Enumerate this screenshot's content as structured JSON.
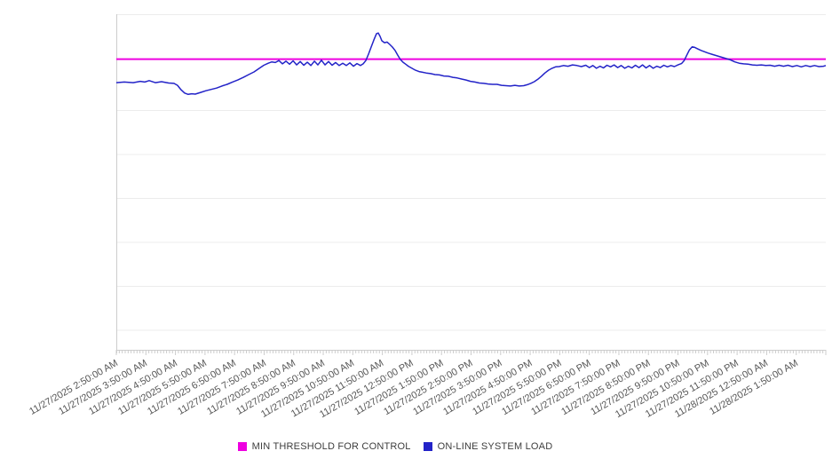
{
  "chart_data": {
    "type": "line",
    "title": "",
    "x_axis": {
      "start": "11/27/2025 2:50:00 AM",
      "end": "11/28/2025 1:50:00 AM",
      "tick_labels": [
        "11/27/2025 2:50:00 AM",
        "11/27/2025 3:50:00 AM",
        "11/27/2025 4:50:00 AM",
        "11/27/2025 5:50:00 AM",
        "11/27/2025 6:50:00 AM",
        "11/27/2025 7:50:00 AM",
        "11/27/2025 8:50:00 AM",
        "11/27/2025 9:50:00 AM",
        "11/27/2025 10:50:00 AM",
        "11/27/2025 11:50:00 AM",
        "11/27/2025 12:50:00 PM",
        "11/27/2025 1:50:00 PM",
        "11/27/2025 2:50:00 PM",
        "11/27/2025 3:50:00 PM",
        "11/27/2025 4:50:00 PM",
        "11/27/2025 5:50:00 PM",
        "11/27/2025 6:50:00 PM",
        "11/27/2025 7:50:00 PM",
        "11/27/2025 8:50:00 PM",
        "11/27/2025 9:50:00 PM",
        "11/27/2025 10:50:00 PM",
        "11/27/2025 11:50:00 PM",
        "11/28/2025 12:50:00 AM",
        "11/28/2025 1:50:00 AM"
      ],
      "minor_ticks_per_hour": 10,
      "hours_span": 24
    },
    "y_axis": {
      "labels_visible": false,
      "note": "no numeric labels shown; series values are percent of plot height (0 = bottom axis, 100 = top gridline)",
      "gridlines": true
    },
    "legend_position": "bottom-center",
    "series": [
      {
        "name": "MIN THRESHOLD FOR CONTROL",
        "style": "horizontal-threshold",
        "color": "#ee00e0",
        "value": 86.6
      },
      {
        "name": "ON-LINE SYSTEM LOAD",
        "style": "line",
        "color": "#2323c8",
        "points": [
          [
            0,
            79.6
          ],
          [
            0.27,
            79.8
          ],
          [
            0.57,
            79.6
          ],
          [
            0.81,
            80
          ],
          [
            0.96,
            79.8
          ],
          [
            1.11,
            80.2
          ],
          [
            1.32,
            79.6
          ],
          [
            1.53,
            79.9
          ],
          [
            1.77,
            79.5
          ],
          [
            1.95,
            79.4
          ],
          [
            2.07,
            78.8
          ],
          [
            2.19,
            77.5
          ],
          [
            2.31,
            76.5
          ],
          [
            2.43,
            76.1
          ],
          [
            2.55,
            76.3
          ],
          [
            2.67,
            76.2
          ],
          [
            2.85,
            76.7
          ],
          [
            3.03,
            77.2
          ],
          [
            3.21,
            77.6
          ],
          [
            3.39,
            78
          ],
          [
            3.57,
            78.6
          ],
          [
            3.75,
            79.1
          ],
          [
            3.93,
            79.8
          ],
          [
            4.11,
            80.4
          ],
          [
            4.3,
            81.2
          ],
          [
            4.48,
            82
          ],
          [
            4.66,
            82.8
          ],
          [
            4.84,
            83.9
          ],
          [
            4.99,
            84.8
          ],
          [
            5.14,
            85.4
          ],
          [
            5.26,
            85.8
          ],
          [
            5.38,
            85.6
          ],
          [
            5.5,
            86.2
          ],
          [
            5.62,
            85.2
          ],
          [
            5.74,
            86
          ],
          [
            5.86,
            85.1
          ],
          [
            5.98,
            86.1
          ],
          [
            6.1,
            84.9
          ],
          [
            6.22,
            85.9
          ],
          [
            6.34,
            84.8
          ],
          [
            6.46,
            85.7
          ],
          [
            6.58,
            84.7
          ],
          [
            6.7,
            86
          ],
          [
            6.82,
            84.9
          ],
          [
            6.94,
            86.3
          ],
          [
            7.06,
            84.9
          ],
          [
            7.18,
            85.9
          ],
          [
            7.3,
            84.8
          ],
          [
            7.42,
            85.6
          ],
          [
            7.54,
            84.7
          ],
          [
            7.66,
            85.4
          ],
          [
            7.78,
            84.7
          ],
          [
            7.9,
            85.5
          ],
          [
            8.02,
            84.5
          ],
          [
            8.14,
            85.3
          ],
          [
            8.26,
            84.7
          ],
          [
            8.35,
            85.2
          ],
          [
            8.44,
            86.2
          ],
          [
            8.53,
            88.1
          ],
          [
            8.62,
            90.2
          ],
          [
            8.71,
            92.3
          ],
          [
            8.8,
            94.2
          ],
          [
            8.86,
            94.4
          ],
          [
            8.92,
            93.4
          ],
          [
            8.98,
            92.1
          ],
          [
            9.07,
            91.5
          ],
          [
            9.16,
            91.7
          ],
          [
            9.25,
            91
          ],
          [
            9.34,
            90.2
          ],
          [
            9.43,
            89.2
          ],
          [
            9.52,
            87.8
          ],
          [
            9.61,
            86.5
          ],
          [
            9.7,
            85.7
          ],
          [
            9.79,
            85.1
          ],
          [
            9.88,
            84.5
          ],
          [
            10,
            83.9
          ],
          [
            10.12,
            83.3
          ],
          [
            10.24,
            82.9
          ],
          [
            10.36,
            82.7
          ],
          [
            10.48,
            82.5
          ],
          [
            10.63,
            82.3
          ],
          [
            10.78,
            82
          ],
          [
            10.93,
            81.9
          ],
          [
            11.08,
            81.6
          ],
          [
            11.23,
            81.5
          ],
          [
            11.38,
            81.2
          ],
          [
            11.53,
            81
          ],
          [
            11.68,
            80.7
          ],
          [
            11.83,
            80.4
          ],
          [
            11.98,
            80
          ],
          [
            12.13,
            79.8
          ],
          [
            12.28,
            79.5
          ],
          [
            12.43,
            79.4
          ],
          [
            12.58,
            79.2
          ],
          [
            12.73,
            79.1
          ],
          [
            12.88,
            79.1
          ],
          [
            13.03,
            78.8
          ],
          [
            13.18,
            78.7
          ],
          [
            13.33,
            78.6
          ],
          [
            13.48,
            78.8
          ],
          [
            13.63,
            78.6
          ],
          [
            13.78,
            78.7
          ],
          [
            13.9,
            79
          ],
          [
            14.02,
            79.4
          ],
          [
            14.14,
            79.9
          ],
          [
            14.26,
            80.6
          ],
          [
            14.38,
            81.5
          ],
          [
            14.5,
            82.5
          ],
          [
            14.62,
            83.3
          ],
          [
            14.74,
            83.9
          ],
          [
            14.86,
            84.3
          ],
          [
            14.98,
            84.4
          ],
          [
            15.13,
            84.7
          ],
          [
            15.28,
            84.5
          ],
          [
            15.43,
            84.9
          ],
          [
            15.58,
            84.7
          ],
          [
            15.73,
            84.4
          ],
          [
            15.88,
            84.8
          ],
          [
            16,
            84.1
          ],
          [
            16.12,
            84.7
          ],
          [
            16.24,
            83.9
          ],
          [
            16.36,
            84.5
          ],
          [
            16.48,
            84
          ],
          [
            16.6,
            84.8
          ],
          [
            16.72,
            84.3
          ],
          [
            16.84,
            84.9
          ],
          [
            16.96,
            84.1
          ],
          [
            17.08,
            84.7
          ],
          [
            17.2,
            83.9
          ],
          [
            17.32,
            84.5
          ],
          [
            17.44,
            84
          ],
          [
            17.56,
            84.8
          ],
          [
            17.68,
            84.1
          ],
          [
            17.8,
            84.9
          ],
          [
            17.92,
            84
          ],
          [
            18.04,
            84.7
          ],
          [
            18.16,
            83.9
          ],
          [
            18.28,
            84.5
          ],
          [
            18.4,
            84.1
          ],
          [
            18.52,
            84.8
          ],
          [
            18.64,
            84.3
          ],
          [
            18.76,
            84.7
          ],
          [
            18.88,
            84.4
          ],
          [
            19,
            84.9
          ],
          [
            19.12,
            85.3
          ],
          [
            19.21,
            86.2
          ],
          [
            19.3,
            87.8
          ],
          [
            19.39,
            89.4
          ],
          [
            19.48,
            90.3
          ],
          [
            19.57,
            90.1
          ],
          [
            19.66,
            89.7
          ],
          [
            19.78,
            89.2
          ],
          [
            19.9,
            88.8
          ],
          [
            20.02,
            88.4
          ],
          [
            20.17,
            88
          ],
          [
            20.32,
            87.6
          ],
          [
            20.47,
            87.2
          ],
          [
            20.62,
            86.8
          ],
          [
            20.77,
            86.4
          ],
          [
            20.92,
            85.8
          ],
          [
            21.07,
            85.4
          ],
          [
            21.22,
            85.2
          ],
          [
            21.37,
            85.1
          ],
          [
            21.52,
            84.9
          ],
          [
            21.67,
            84.8
          ],
          [
            21.82,
            84.9
          ],
          [
            21.97,
            84.7
          ],
          [
            22.12,
            84.8
          ],
          [
            22.27,
            84.5
          ],
          [
            22.42,
            84.8
          ],
          [
            22.57,
            84.5
          ],
          [
            22.72,
            84.8
          ],
          [
            22.87,
            84.4
          ],
          [
            23.02,
            84.7
          ],
          [
            23.17,
            84.3
          ],
          [
            23.32,
            84.7
          ],
          [
            23.47,
            84.4
          ],
          [
            23.62,
            84.7
          ],
          [
            23.77,
            84.4
          ],
          [
            23.92,
            84.5
          ],
          [
            24,
            84.7
          ]
        ]
      }
    ]
  },
  "legend": {
    "items": [
      {
        "label": "MIN THRESHOLD FOR CONTROL",
        "color": "#ee00e0"
      },
      {
        "label": "ON-LINE SYSTEM LOAD",
        "color": "#2323c8"
      }
    ]
  },
  "colors": {
    "gridline": "#ececec",
    "axis": "#cccccc",
    "tick_text": "#565656",
    "background": "#ffffff"
  }
}
